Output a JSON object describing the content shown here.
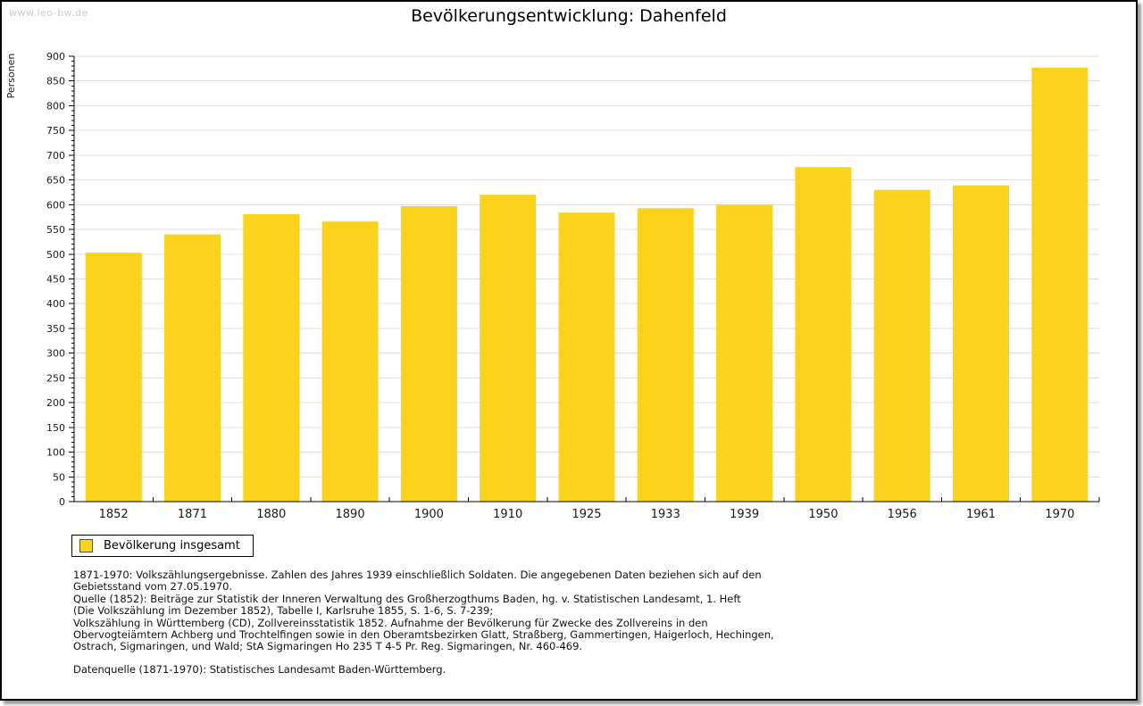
{
  "watermark": "www.leo-bw.de",
  "title": "Bevölkerungsentwicklung: Dahenfeld",
  "legend": {
    "label": "Bevölkerung insgesamt"
  },
  "colors": {
    "bar": "#FCD31C",
    "grid": "#dddddd",
    "axis": "#000000",
    "tick_label": "#1a1a1a",
    "watermark": "#cccccc"
  },
  "chart_data": {
    "type": "bar",
    "title": "Bevölkerungsentwicklung: Dahenfeld",
    "xlabel": "",
    "ylabel": "Personen",
    "categories": [
      "1852",
      "1871",
      "1880",
      "1890",
      "1900",
      "1910",
      "1925",
      "1933",
      "1939",
      "1950",
      "1956",
      "1961",
      "1970"
    ],
    "values": [
      503,
      540,
      581,
      566,
      597,
      620,
      584,
      593,
      600,
      676,
      630,
      639,
      877
    ],
    "ylim": [
      0,
      900
    ],
    "ytick_major": 50,
    "ytick_minor": 10,
    "grid": true,
    "legend": [
      "Bevölkerung insgesamt"
    ],
    "legend_position": "bottom-left",
    "series_color": "#FCD31C"
  },
  "footnotes": {
    "lines": [
      "1871-1970: Volkszählungsergebnisse. Zahlen des Jahres 1939 einschließlich Soldaten. Die angegebenen Daten beziehen sich auf den",
      "Gebietsstand vom 27.05.1970.",
      "Quelle (1852): Beiträge zur Statistik der Inneren Verwaltung des Großherzogthums Baden, hg. v. Statistischen Landesamt, 1. Heft",
      "(Die Volkszählung im Dezember 1852), Tabelle I, Karlsruhe 1855, S. 1-6, S. 7-239;",
      "Volkszählung in Württemberg (CD), Zollvereinsstatistik 1852. Aufnahme der Bevölkerung für Zwecke des Zollvereins in den",
      "Obervogteiämtern Achberg und Trochtelfingen sowie in den Oberamtsbezirken Glatt, Straßberg, Gammertingen, Haigerloch, Hechingen,",
      "Ostrach, Sigmaringen, und Wald; StA Sigmaringen Ho 235 T 4-5 Pr. Reg. Sigmaringen, Nr. 460-469."
    ],
    "datasource": "Datenquelle (1871-1970): Statistisches Landesamt Baden-Württemberg."
  }
}
